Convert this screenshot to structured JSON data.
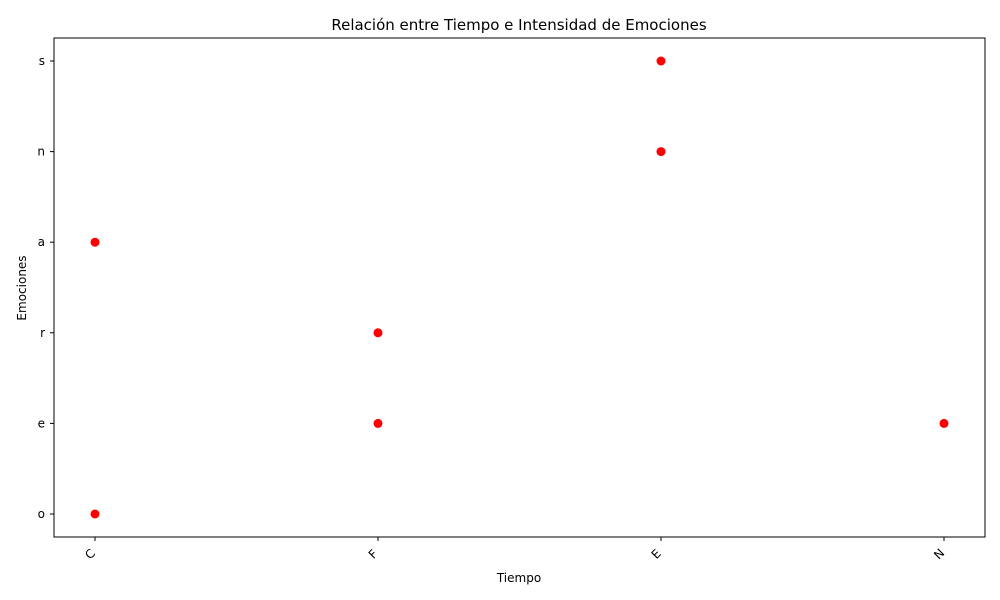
{
  "chart_data": {
    "type": "scatter",
    "title": "Relación entre Tiempo e Intensidad de Emociones",
    "xlabel": "Tiempo",
    "ylabel": "Emociones",
    "x_categories": [
      "C",
      "F",
      "E",
      "N"
    ],
    "y_categories": [
      "o",
      "e",
      "r",
      "a",
      "n",
      "s"
    ],
    "points": [
      {
        "x": "C",
        "y": "a"
      },
      {
        "x": "C",
        "y": "o"
      },
      {
        "x": "F",
        "y": "r"
      },
      {
        "x": "F",
        "y": "e"
      },
      {
        "x": "E",
        "y": "s"
      },
      {
        "x": "E",
        "y": "n"
      },
      {
        "x": "N",
        "y": "e"
      }
    ],
    "marker_color": "#ff0000",
    "grid": false,
    "legend": "none",
    "x_tick_rotation": 45
  }
}
